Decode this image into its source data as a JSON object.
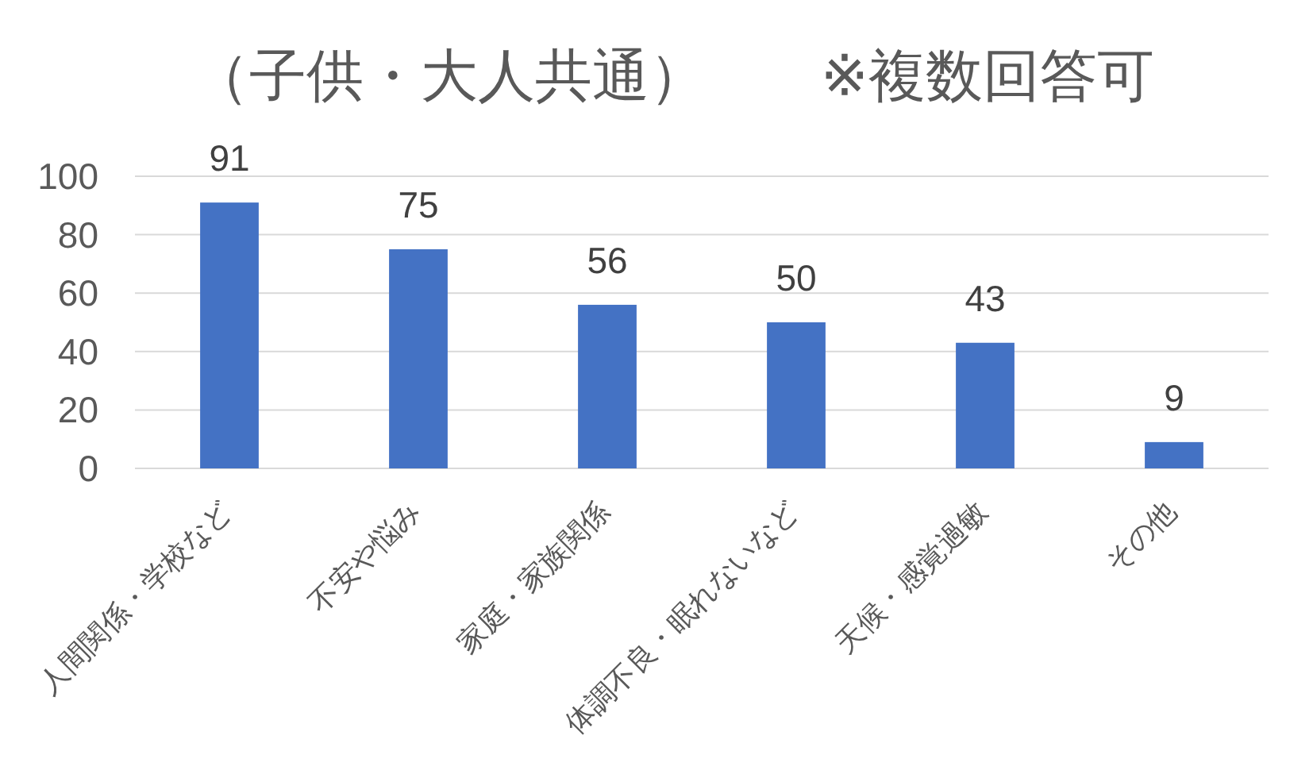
{
  "chart_data": {
    "type": "bar",
    "title": "（子供・大人共通）　　※複数回答可",
    "categories": [
      "人間関係・学校など",
      "不安や悩み",
      "家庭・家族関係",
      "体調不良・眠れないなど",
      "天候・感覚過敏",
      "その他"
    ],
    "values": [
      91,
      75,
      56,
      50,
      43,
      9
    ],
    "color": "#4472c4",
    "ylim": [
      0,
      100
    ],
    "yticks": [
      0,
      20,
      40,
      60,
      80,
      100
    ],
    "grid": "y",
    "data_labels": true
  }
}
